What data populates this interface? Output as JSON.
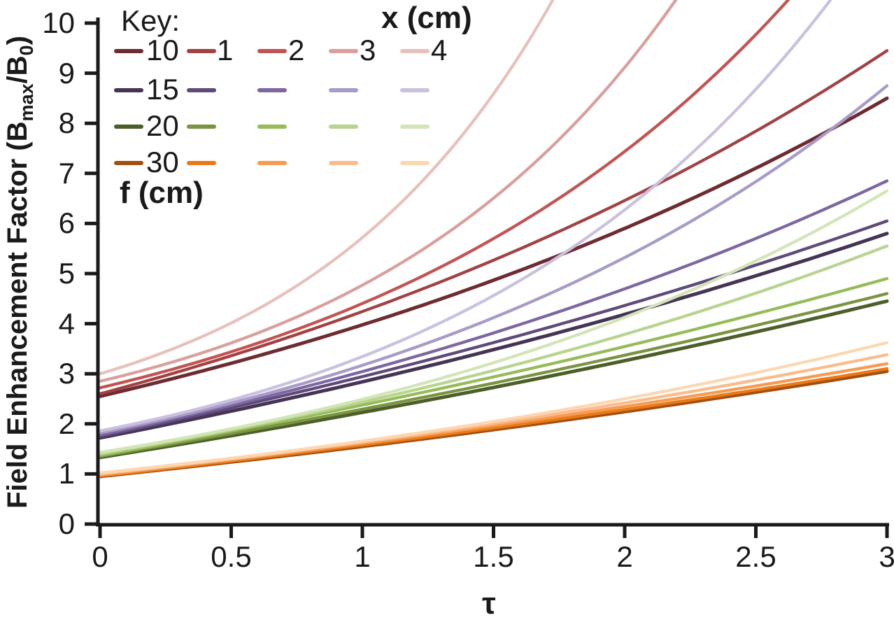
{
  "y_axis": {
    "title_parts": {
      "p1": "Field Enhancement Factor (B",
      "sub1": "max",
      "p2": "/B",
      "sub2": "0",
      "p3": ")"
    },
    "ticks": [
      "0",
      "1",
      "2",
      "3",
      "4",
      "5",
      "6",
      "7",
      "8",
      "9",
      "10"
    ],
    "range": [
      0,
      10
    ]
  },
  "x_axis": {
    "title": "τ",
    "ticks": [
      "0",
      "0.5",
      "1",
      "1.5",
      "2",
      "2.5",
      "3"
    ],
    "tick_values": [
      0,
      0.5,
      1,
      1.5,
      2,
      2.5,
      3
    ],
    "range": [
      0,
      3
    ]
  },
  "legend": {
    "key_label": "Key:",
    "x_header": "x (cm)",
    "f_footer": "f (cm)",
    "columns": [
      "1",
      "2",
      "3",
      "4"
    ],
    "rows": [
      {
        "f": "10",
        "colors": [
          "#6e2c31",
          "#a14243",
          "#c25452",
          "#d9a09d",
          "#e7c1bc"
        ]
      },
      {
        "f": "15",
        "colors": [
          "#463454",
          "#5f4a7a",
          "#7d67a2",
          "#a89bc7",
          "#cac1df"
        ]
      },
      {
        "f": "20",
        "colors": [
          "#4c5f29",
          "#7a9440",
          "#96bc58",
          "#b8d48f",
          "#d3e5b7"
        ]
      },
      {
        "f": "30",
        "colors": [
          "#a24f10",
          "#ea7916",
          "#f59b52",
          "#fabc8c",
          "#fcd7b0"
        ]
      }
    ]
  },
  "chart_data": {
    "type": "line",
    "title": "",
    "xlabel": "τ",
    "ylabel": "Field Enhancement Factor (Bmax/B0)",
    "xlim": [
      0,
      3
    ],
    "ylim": [
      0,
      10
    ],
    "grid": false,
    "legend_position": "top-left",
    "series": [
      {
        "f": "10",
        "x_cm": null,
        "legend_label": "10",
        "color": "#6e2c31",
        "start": 2.55,
        "end": 8.5,
        "end_tau": 3,
        "curvature": 0.9,
        "width": 5
      },
      {
        "f": "10",
        "x_cm": "1",
        "legend_label": "1",
        "color": "#a14243",
        "start": 2.6,
        "end": 9.45,
        "end_tau": 3,
        "curvature": 0.9,
        "width": 4.3
      },
      {
        "f": "10",
        "x_cm": "2",
        "legend_label": "2",
        "color": "#c25452",
        "start": 2.72,
        "end": 10.5,
        "end_tau": 2.63,
        "curvature": 1.55,
        "width": 4.3
      },
      {
        "f": "10",
        "x_cm": "3",
        "legend_label": "3",
        "color": "#d9a09d",
        "start": 2.85,
        "end": 10.5,
        "end_tau": 2.2,
        "curvature": 1.8,
        "width": 4.3
      },
      {
        "f": "10",
        "x_cm": "4",
        "legend_label": "4",
        "color": "#e7c1bc",
        "start": 3.0,
        "end": 10.5,
        "end_tau": 1.73,
        "curvature": 1.8,
        "width": 4.3
      },
      {
        "f": "15",
        "x_cm": null,
        "legend_label": "15",
        "color": "#463454",
        "start": 1.72,
        "end": 5.8,
        "end_tau": 3,
        "curvature": 0.55,
        "width": 5
      },
      {
        "f": "15",
        "x_cm": "1",
        "legend_label": "",
        "color": "#5f4a7a",
        "start": 1.75,
        "end": 6.05,
        "end_tau": 3,
        "curvature": 0.52,
        "width": 4.3
      },
      {
        "f": "15",
        "x_cm": "2",
        "legend_label": "",
        "color": "#7d67a2",
        "start": 1.78,
        "end": 6.85,
        "end_tau": 3,
        "curvature": 0.8,
        "width": 4.3
      },
      {
        "f": "15",
        "x_cm": "3",
        "legend_label": "",
        "color": "#a89bc7",
        "start": 1.82,
        "end": 8.75,
        "end_tau": 3,
        "curvature": 1.4,
        "width": 4.3
      },
      {
        "f": "15",
        "x_cm": "4",
        "legend_label": "",
        "color": "#cac1df",
        "start": 1.86,
        "end": 10.5,
        "end_tau": 2.79,
        "curvature": 1.9,
        "width": 4.3
      },
      {
        "f": "20",
        "x_cm": null,
        "legend_label": "20",
        "color": "#4c5f29",
        "start": 1.33,
        "end": 4.45,
        "end_tau": 3,
        "curvature": 0.42,
        "width": 5
      },
      {
        "f": "20",
        "x_cm": "1",
        "legend_label": "",
        "color": "#7a9440",
        "start": 1.35,
        "end": 4.6,
        "end_tau": 3,
        "curvature": 0.4,
        "width": 4.3
      },
      {
        "f": "20",
        "x_cm": "2",
        "legend_label": "",
        "color": "#96bc58",
        "start": 1.37,
        "end": 4.9,
        "end_tau": 3,
        "curvature": 0.45,
        "width": 4.3
      },
      {
        "f": "20",
        "x_cm": "3",
        "legend_label": "",
        "color": "#b8d48f",
        "start": 1.4,
        "end": 5.55,
        "end_tau": 3,
        "curvature": 0.8,
        "width": 4.3
      },
      {
        "f": "20",
        "x_cm": "4",
        "legend_label": "",
        "color": "#d3e5b7",
        "start": 1.43,
        "end": 6.65,
        "end_tau": 3,
        "curvature": 1.3,
        "width": 4.3
      },
      {
        "f": "30",
        "x_cm": null,
        "legend_label": "30",
        "color": "#a24f10",
        "start": 0.95,
        "end": 3.05,
        "end_tau": 3,
        "curvature": 0.45,
        "width": 5
      },
      {
        "f": "30",
        "x_cm": "1",
        "legend_label": "",
        "color": "#ea7916",
        "start": 0.96,
        "end": 3.1,
        "end_tau": 3,
        "curvature": 0.42,
        "width": 4.3
      },
      {
        "f": "30",
        "x_cm": "2",
        "legend_label": "",
        "color": "#f59b52",
        "start": 0.98,
        "end": 3.2,
        "end_tau": 3,
        "curvature": 0.45,
        "width": 4.3
      },
      {
        "f": "30",
        "x_cm": "3",
        "legend_label": "",
        "color": "#fabc8c",
        "start": 1.0,
        "end": 3.38,
        "end_tau": 3,
        "curvature": 0.62,
        "width": 4.3
      },
      {
        "f": "30",
        "x_cm": "4",
        "legend_label": "",
        "color": "#fcd7b0",
        "start": 1.02,
        "end": 3.62,
        "end_tau": 3,
        "curvature": 0.85,
        "width": 4.3
      }
    ]
  },
  "style": {
    "axis_color": "#1a1a1a",
    "background": "#ffffff"
  }
}
